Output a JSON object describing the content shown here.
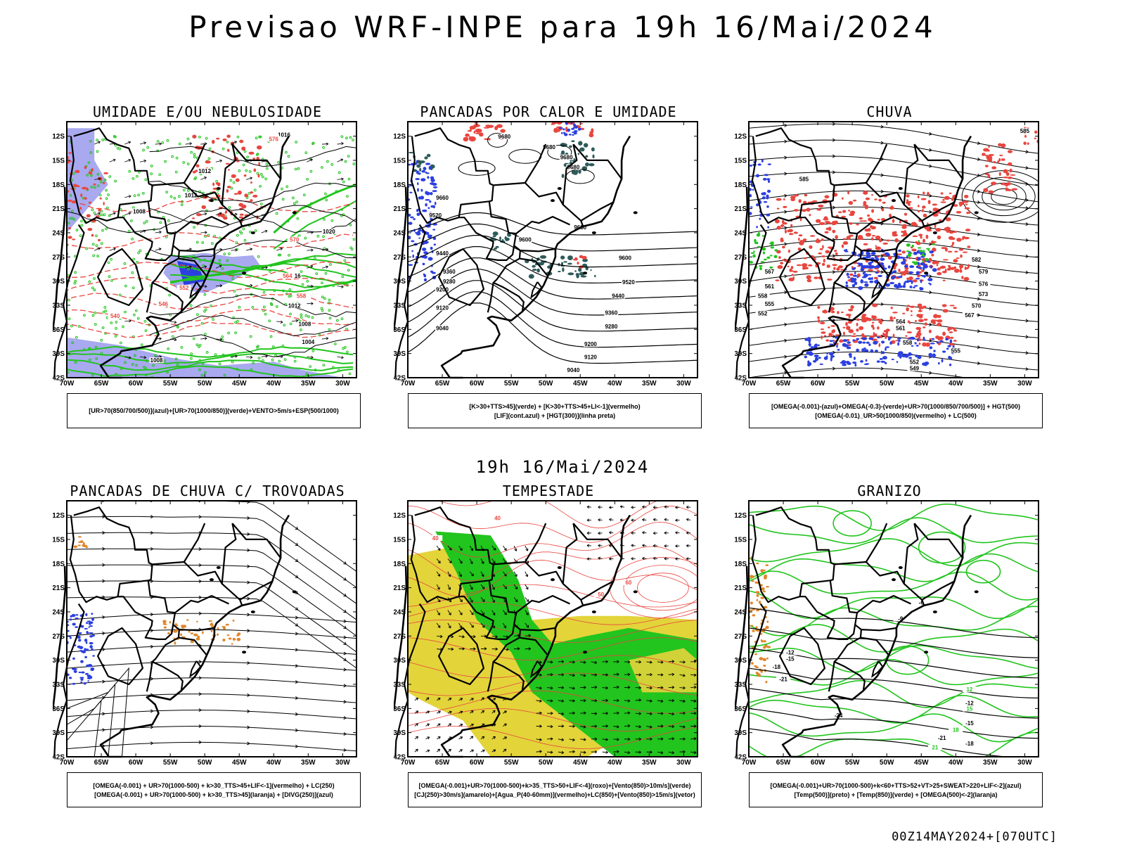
{
  "header": {
    "title": "Previsao WRF-INPE  para 19h 16/Mai/2024"
  },
  "mid_title": "19h 16/Mai/2024",
  "footer": {
    "stamp": "00Z14MAY2024+[070UTC]"
  },
  "axes": {
    "lat_labels": [
      "12S",
      "15S",
      "18S",
      "21S",
      "24S",
      "27S",
      "30S",
      "33S",
      "36S",
      "39S",
      "42S"
    ],
    "lon_labels": [
      "70W",
      "65W",
      "60W",
      "55W",
      "50W",
      "45W",
      "40W",
      "35W",
      "30W"
    ]
  },
  "colors": {
    "green": "#22c41e",
    "red": "#e8463f",
    "blue": "#2b3fe0",
    "lavender": "#a9a9f0",
    "teal": "#2e5a5a",
    "yellow": "#e3d43a",
    "orange": "#e0862a",
    "black": "#000000"
  },
  "panels": [
    {
      "id": "umidade",
      "title": "UMIDADE E/OU NEBULOSIDADE",
      "legend": [
        "[UR>70(850/700/500)](azul)+[UR>70(1000/850)](verde)+VENTO>5m/s+ESP(500/1000)"
      ],
      "contour_labels": [
        "1016",
        "1012",
        "1012",
        "1008",
        "1020",
        "1016",
        "1012",
        "1008",
        "1004",
        "1008",
        "576",
        "570",
        "564",
        "558",
        "552",
        "546",
        "540"
      ]
    },
    {
      "id": "pancadas_calor",
      "title": "PANCADAS POR CALOR E UMIDADE",
      "legend": [
        "[K>30+TTS>45](verde) + [K>30+TTS>45+LI<-1](vermelho)",
        "[LIF](cont.azul) + [HGT(300)](linha preta)"
      ],
      "contour_labels": [
        "9680",
        "9680",
        "9680",
        "9680",
        "9660",
        "9520",
        "9440",
        "9360",
        "9280",
        "9200",
        "9120",
        "9040",
        "9600",
        "9520",
        "9440",
        "9360",
        "9280",
        "9200",
        "9120",
        "9040",
        "9600",
        "9680"
      ]
    },
    {
      "id": "chuva",
      "title": "CHUVA",
      "legend": [
        "[OMEGA(-0.001)-(azul)+OMEGA(-0.3)-(verde)+UR>70(1000/850/700/500)] + HGT(500)",
        "[OMEGA(-0.01)_UR>50(1000/850)(vermelho) + LC(500)"
      ],
      "contour_labels": [
        "585",
        "585",
        "582",
        "579",
        "576",
        "573",
        "570",
        "567",
        "564",
        "561",
        "558",
        "555",
        "552",
        "549"
      ]
    },
    {
      "id": "pancadas_trovoadas",
      "title": "PANCADAS DE CHUVA C/ TROVOADAS",
      "legend": [
        "[OMEGA(-0.001) + UR>70(1000-500) + k>30_TTS>45+LIF<-1](vermelho) + LC(250)",
        "[OMEGA(-0.001) + UR>70(1000-500) + k>30_TTS>45](laranja) + [DIVG(250)](azul)"
      ],
      "contour_labels": []
    },
    {
      "id": "tempestade",
      "title": "TEMPESTADE",
      "legend": [
        "[OMEGA(-0.001)+UR>70(1000-500)+k>35_TTS>50+LIF<-4](roxo)+[Vento(850)>10m/s](verde)",
        "[CJ(250)>30m/s](amarelo)+[Agua_P(40-60mm)](vermelho)+LC(850)+[Vento(850)>15m/s](vetor)"
      ],
      "contour_labels": [
        "40",
        "40",
        "50",
        "60"
      ]
    },
    {
      "id": "granizo",
      "title": "GRANIZO",
      "legend": [
        "[OMEGA(-0.001)+UR>70(1000-500)+k<60+TTS>52+VT>25+SWEAT>220+LIF<-2](azul)",
        "[Temp(500)](preto) + [Temp(850)](verde) + [OMEGA(500)<-2](laranja)"
      ],
      "contour_labels": [
        "-12",
        "-15",
        "-18",
        "-21",
        "-12",
        "-15",
        "-18",
        "-21",
        "-24",
        "-9",
        "-6",
        "12",
        "15",
        "18",
        "21"
      ]
    }
  ]
}
